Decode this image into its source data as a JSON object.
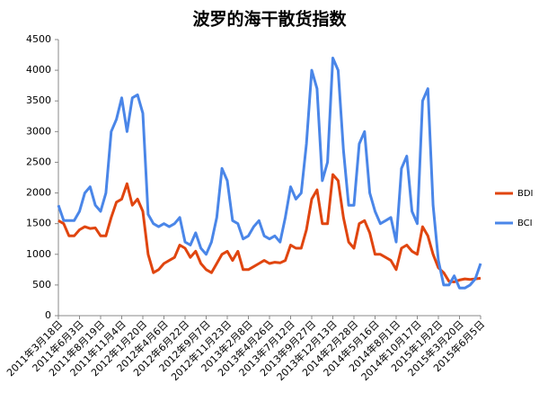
{
  "chart_data": {
    "type": "line",
    "title": "波罗的海干散货指数",
    "categories": [
      "2011年3月18日",
      null,
      null,
      null,
      "2011年6月3日",
      null,
      null,
      null,
      "2011年8月19日",
      null,
      null,
      null,
      "2011年11月4日",
      null,
      null,
      null,
      "2012年1月20日",
      null,
      null,
      null,
      "2012年4月6日",
      null,
      null,
      null,
      "2012年6月22日",
      null,
      null,
      null,
      "2012年9月7日",
      null,
      null,
      null,
      "2012年11月23日",
      null,
      null,
      null,
      "2013年2月8日",
      null,
      null,
      null,
      "2013年4月26日",
      null,
      null,
      null,
      "2013年7月12日",
      null,
      null,
      null,
      "2013年9月27日",
      null,
      null,
      null,
      "2013年12月13日",
      null,
      null,
      null,
      "2014年2月28日",
      null,
      null,
      null,
      "2014年5月16日",
      null,
      null,
      null,
      "2014年8月1日",
      null,
      null,
      null,
      "2014年10月17日",
      null,
      null,
      null,
      "2015年1月2日",
      null,
      null,
      null,
      "2015年3月20日",
      null,
      null,
      null,
      "2015年6月5日"
    ],
    "series": [
      {
        "name": "BDI",
        "color": "#e0450f",
        "values": [
          1550,
          1500,
          1300,
          1300,
          1400,
          1450,
          1420,
          1430,
          1300,
          1300,
          1600,
          1850,
          1900,
          2150,
          1800,
          1900,
          1700,
          1000,
          700,
          750,
          850,
          900,
          950,
          1150,
          1100,
          950,
          1050,
          850,
          750,
          700,
          850,
          1000,
          1050,
          900,
          1050,
          750,
          750,
          800,
          850,
          900,
          850,
          870,
          860,
          900,
          1150,
          1100,
          1100,
          1400,
          1900,
          2050,
          1500,
          1500,
          2300,
          2200,
          1600,
          1200,
          1100,
          1500,
          1550,
          1350,
          1000,
          1000,
          950,
          900,
          750,
          1100,
          1150,
          1050,
          1000,
          1450,
          1300,
          1000,
          780,
          700,
          560,
          550,
          580,
          600,
          590,
          600,
          610
        ]
      },
      {
        "name": "BCI",
        "color": "#4a86e8",
        "values": [
          1800,
          1550,
          1550,
          1550,
          1700,
          2000,
          2100,
          1800,
          1700,
          2000,
          3000,
          3200,
          3550,
          3000,
          3550,
          3600,
          3300,
          1650,
          1500,
          1450,
          1500,
          1450,
          1500,
          1600,
          1200,
          1150,
          1350,
          1100,
          1000,
          1200,
          1600,
          2400,
          2200,
          1550,
          1500,
          1250,
          1300,
          1450,
          1550,
          1300,
          1250,
          1300,
          1200,
          1600,
          2100,
          1900,
          2000,
          2800,
          4000,
          3700,
          2200,
          2500,
          4200,
          4000,
          2700,
          1800,
          1800,
          2800,
          3000,
          2000,
          1700,
          1500,
          1550,
          1600,
          1200,
          2400,
          2600,
          1700,
          1500,
          3500,
          3700,
          1800,
          900,
          500,
          500,
          650,
          450,
          450,
          500,
          600,
          850
        ]
      }
    ],
    "ylim": [
      0,
      4500
    ],
    "yticks": [
      0,
      500,
      1000,
      1500,
      2000,
      2500,
      3000,
      3500,
      4000,
      4500
    ],
    "legend": "right"
  }
}
